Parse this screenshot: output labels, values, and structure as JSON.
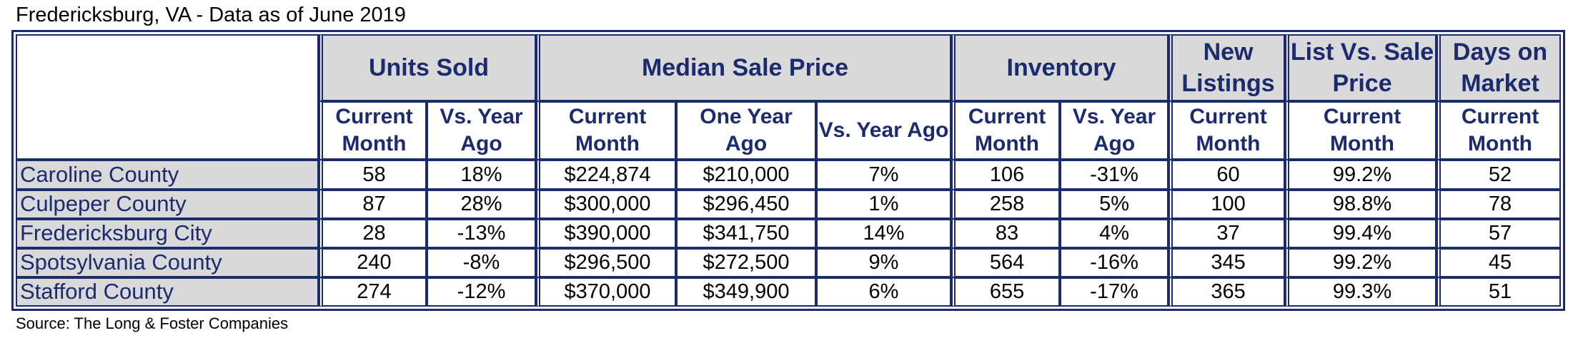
{
  "title": "Fredericksburg, VA - Data as of June 2019",
  "source": "Source: The Long & Foster Companies",
  "colors": {
    "border": "#1c2a6e",
    "header_fill": "#d9d9d9",
    "text": "#1c2a6e"
  },
  "chart_data": {
    "type": "table",
    "group_headers": {
      "units_sold": "Units Sold",
      "median_sale_price": "Median Sale Price",
      "inventory": "Inventory",
      "new_listings": "New Listings",
      "list_vs_sale": "List Vs. Sale Price",
      "days_on_market": "Days on Market"
    },
    "sub_headers": {
      "current_month": "Current Month",
      "vs_year_ago": "Vs. Year Ago",
      "one_year_ago": "One Year Ago"
    },
    "rows": [
      {
        "name": "Caroline County",
        "units_current": "58",
        "units_vs": "18%",
        "price_current": "$224,874",
        "price_year_ago": "$210,000",
        "price_vs": "7%",
        "inv_current": "106",
        "inv_vs": "-31%",
        "new_listings": "60",
        "list_vs_sale": "99.2%",
        "dom": "52"
      },
      {
        "name": "Culpeper County",
        "units_current": "87",
        "units_vs": "28%",
        "price_current": "$300,000",
        "price_year_ago": "$296,450",
        "price_vs": "1%",
        "inv_current": "258",
        "inv_vs": "5%",
        "new_listings": "100",
        "list_vs_sale": "98.8%",
        "dom": "78"
      },
      {
        "name": "Fredericksburg City",
        "units_current": "28",
        "units_vs": "-13%",
        "price_current": "$390,000",
        "price_year_ago": "$341,750",
        "price_vs": "14%",
        "inv_current": "83",
        "inv_vs": "4%",
        "new_listings": "37",
        "list_vs_sale": "99.4%",
        "dom": "57"
      },
      {
        "name": "Spotsylvania County",
        "units_current": "240",
        "units_vs": "-8%",
        "price_current": "$296,500",
        "price_year_ago": "$272,500",
        "price_vs": "9%",
        "inv_current": "564",
        "inv_vs": "-16%",
        "new_listings": "345",
        "list_vs_sale": "99.2%",
        "dom": "45"
      },
      {
        "name": "Stafford County",
        "units_current": "274",
        "units_vs": "-12%",
        "price_current": "$370,000",
        "price_year_ago": "$349,900",
        "price_vs": "6%",
        "inv_current": "655",
        "inv_vs": "-17%",
        "new_listings": "365",
        "list_vs_sale": "99.3%",
        "dom": "51"
      }
    ]
  }
}
